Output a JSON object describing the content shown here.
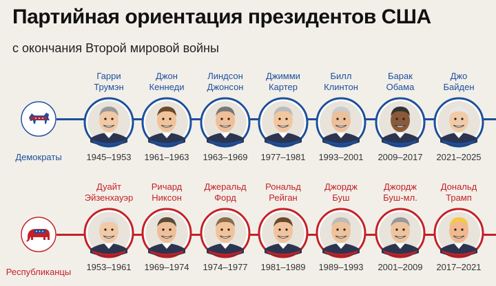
{
  "title": "Партийная ориентация президентов США",
  "subtitle": "с окончания Второй мировой войны",
  "colors": {
    "democrat": "#1d4f9c",
    "republican": "#c32127",
    "background": "#f2efe9"
  },
  "democrats": {
    "label": "Демократы",
    "icon": "donkey-icon",
    "presidents": [
      {
        "name_line1": "Гарри",
        "name_line2": "Трумэн",
        "years": "1945–1953"
      },
      {
        "name_line1": "Джон",
        "name_line2": "Кеннеди",
        "years": "1961–1963"
      },
      {
        "name_line1": "Линдсон",
        "name_line2": "Джонсон",
        "years": "1963–1969"
      },
      {
        "name_line1": "Джимми",
        "name_line2": "Картер",
        "years": "1977–1981"
      },
      {
        "name_line1": "Билл",
        "name_line2": "Клинтон",
        "years": "1993–2001"
      },
      {
        "name_line1": "Барак",
        "name_line2": "Обама",
        "years": "2009–2017"
      },
      {
        "name_line1": "Джо",
        "name_line2": "Байден",
        "years": "2021–2025"
      }
    ]
  },
  "republicans": {
    "label": "Республиканцы",
    "icon": "elephant-icon",
    "presidents": [
      {
        "name_line1": "Дуайт",
        "name_line2": "Эйзенхауэр",
        "years": "1953–1961"
      },
      {
        "name_line1": "Ричард",
        "name_line2": "Никсон",
        "years": "1969–1974"
      },
      {
        "name_line1": "Джеральд",
        "name_line2": "Форд",
        "years": "1974–1977"
      },
      {
        "name_line1": "Рональд",
        "name_line2": "Рейган",
        "years": "1981–1989"
      },
      {
        "name_line1": "Джордж",
        "name_line2": "Буш",
        "years": "1989–1993"
      },
      {
        "name_line1": "Джордж",
        "name_line2": "Буш-мл.",
        "years": "2001–2009"
      },
      {
        "name_line1": "Дональд",
        "name_line2": "Трамп",
        "years": "2017–2021"
      }
    ]
  }
}
